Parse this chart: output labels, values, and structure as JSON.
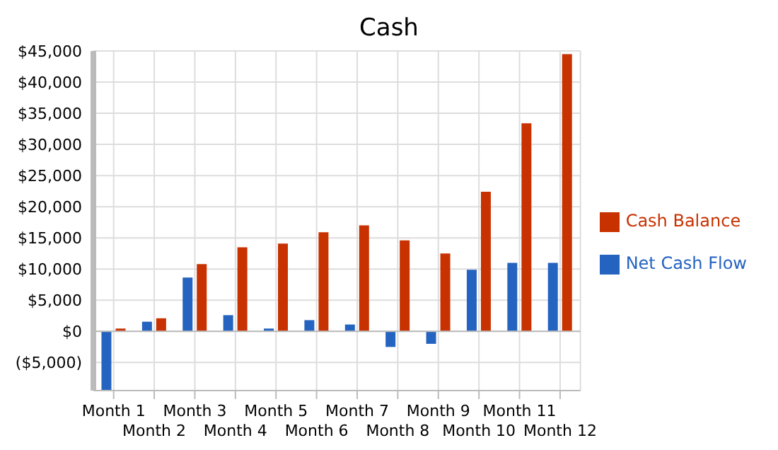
{
  "chart_data": {
    "type": "bar",
    "title": "Cash",
    "categories": [
      "Month 1",
      "Month 2",
      "Month 3",
      "Month 4",
      "Month 5",
      "Month 6",
      "Month 7",
      "Month 8",
      "Month 9",
      "Month 10",
      "Month 11",
      "Month 12"
    ],
    "series": [
      {
        "name": "Net Cash Flow",
        "color": "#2563c0",
        "values": [
          -9500,
          1550,
          8650,
          2600,
          450,
          1800,
          1100,
          -2500,
          -2000,
          9900,
          11000,
          11000
        ]
      },
      {
        "name": "Cash Balance",
        "color": "#c83200",
        "values": [
          450,
          2100,
          10800,
          13500,
          14100,
          15900,
          17000,
          14600,
          12500,
          22400,
          33400,
          44500
        ]
      }
    ],
    "ylim": [
      -9500,
      45000
    ],
    "yticks": [
      {
        "value": -5000,
        "label": "($5,000)"
      },
      {
        "value": 0,
        "label": "$0"
      },
      {
        "value": 5000,
        "label": "$5,000"
      },
      {
        "value": 10000,
        "label": "$10,000"
      },
      {
        "value": 15000,
        "label": "$15,000"
      },
      {
        "value": 20000,
        "label": "$20,000"
      },
      {
        "value": 25000,
        "label": "$25,000"
      },
      {
        "value": 30000,
        "label": "$30,000"
      },
      {
        "value": 35000,
        "label": "$35,000"
      },
      {
        "value": 40000,
        "label": "$40,000"
      },
      {
        "value": 45000,
        "label": "$45,000"
      }
    ],
    "grid": true,
    "legend": "right"
  }
}
